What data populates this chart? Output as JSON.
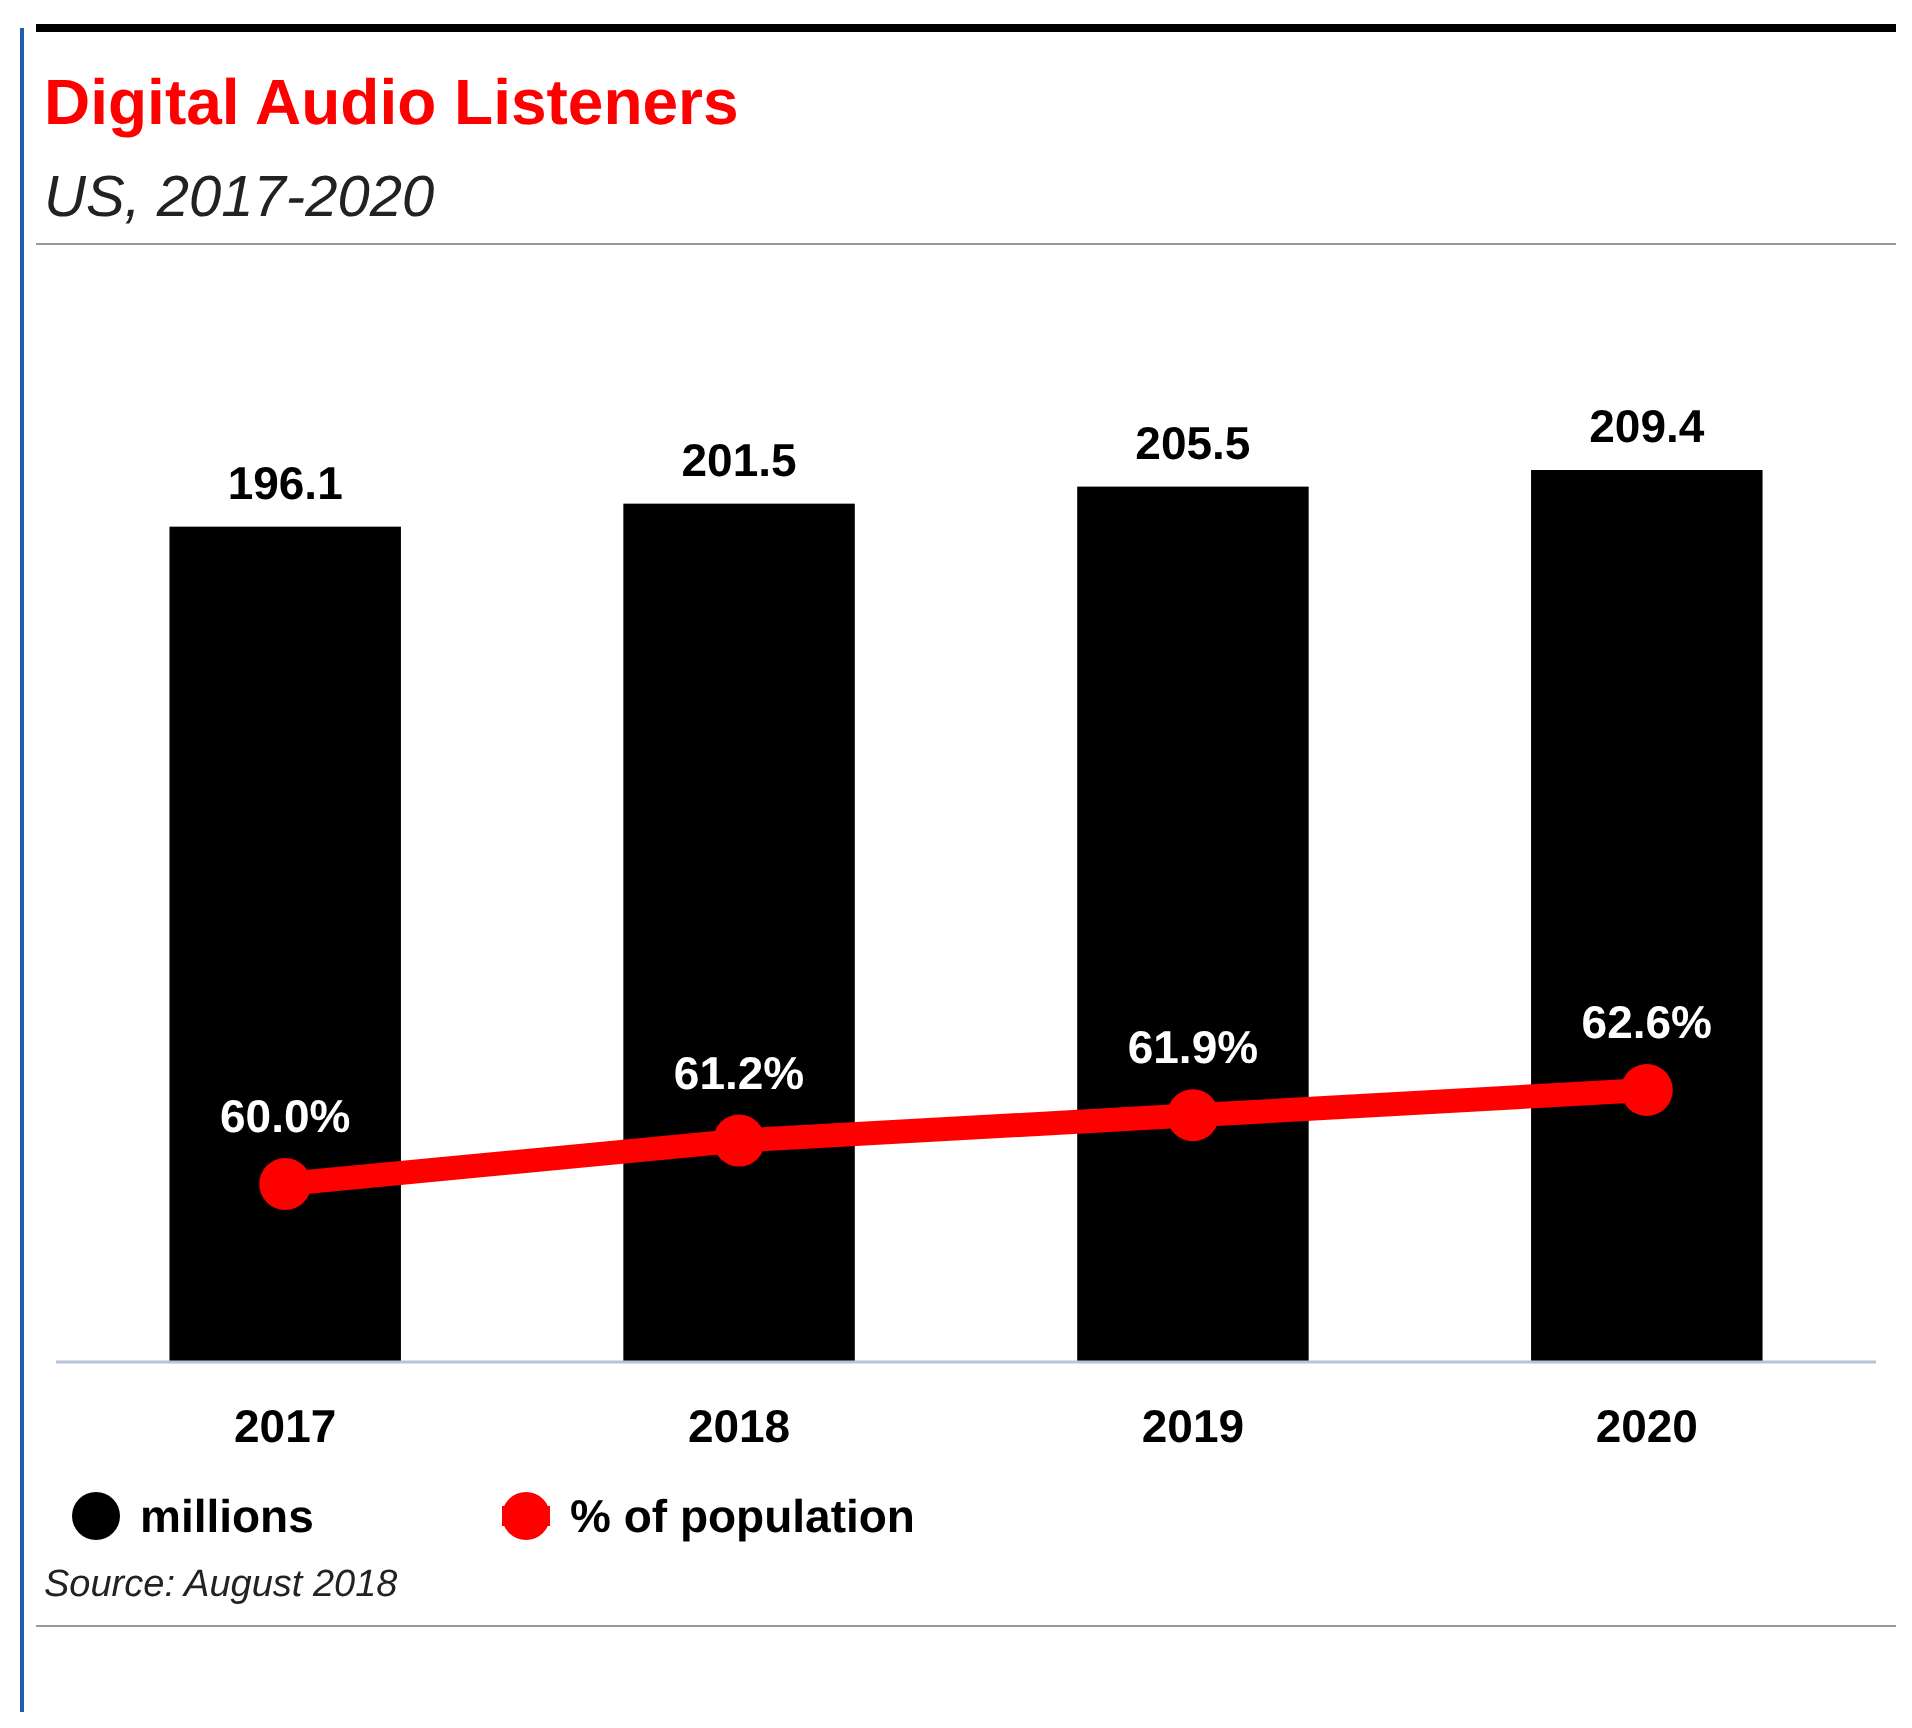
{
  "chart_data": {
    "type": "bar",
    "title": "Digital Audio Listeners",
    "subtitle": "US, 2017-2020",
    "categories": [
      "2017",
      "2018",
      "2019",
      "2020"
    ],
    "series": [
      {
        "name": "millions",
        "color": "#000000",
        "values": [
          196.1,
          201.5,
          205.5,
          209.4
        ]
      },
      {
        "name": "% of population",
        "type": "line",
        "axis": "y2",
        "color": "#ff0000",
        "values": [
          60.0,
          61.2,
          61.9,
          62.6
        ],
        "value_labels": [
          "60.0%",
          "61.2%",
          "61.9%",
          "62.6%"
        ]
      }
    ],
    "data_labels": true,
    "marker": "circle",
    "legend": "bottom left",
    "annotations": [
      "Source: August 2018"
    ]
  }
}
